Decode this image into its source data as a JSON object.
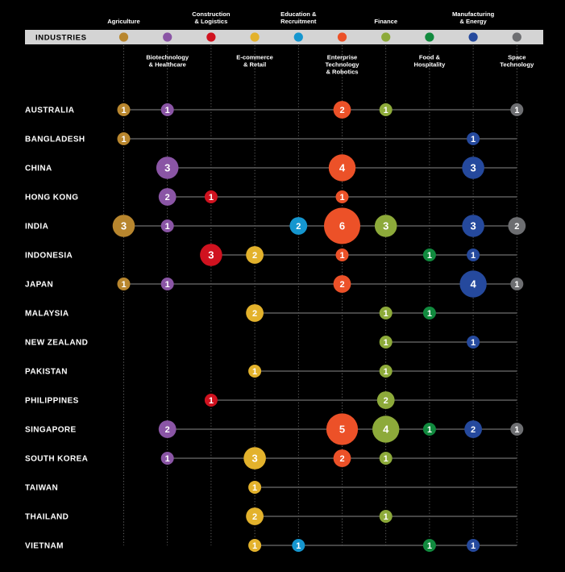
{
  "chart_data": {
    "type": "bubble-matrix",
    "band_title": "INDUSTRIES",
    "industries": [
      {
        "label": [
          "Agriculture"
        ],
        "color": "#b8862e"
      },
      {
        "label": [
          "Biotechnology",
          "& Healthcare"
        ],
        "color": "#8a55a5"
      },
      {
        "label": [
          "Construction",
          "& Logistics"
        ],
        "color": "#d0121f"
      },
      {
        "label": [
          "E-commerce",
          "& Retail"
        ],
        "color": "#e3b22c"
      },
      {
        "label": [
          "Education &",
          "Recruitment"
        ],
        "color": "#1596cf"
      },
      {
        "label": [
          "Enterprise",
          "Technology",
          "& Robotics"
        ],
        "color": "#ec5128"
      },
      {
        "label": [
          "Finance"
        ],
        "color": "#8daa3a"
      },
      {
        "label": [
          "Food &",
          "Hospitality"
        ],
        "color": "#118a3e"
      },
      {
        "label": [
          "Manufacturing",
          "& Energy"
        ],
        "color": "#25499d"
      },
      {
        "label": [
          "Space",
          "Technology"
        ],
        "color": "#6d6e71"
      }
    ],
    "countries": [
      "AUSTRALIA",
      "BANGLADESH",
      "CHINA",
      "HONG KONG",
      "INDIA",
      "INDONESIA",
      "JAPAN",
      "MALAYSIA",
      "NEW ZEALAND",
      "PAKISTAN",
      "PHILIPPINES",
      "SINGAPORE",
      "SOUTH KOREA",
      "TAIWAN",
      "THAILAND",
      "VIETNAM"
    ],
    "values": [
      [
        1,
        1,
        0,
        0,
        0,
        2,
        1,
        0,
        0,
        1
      ],
      [
        1,
        0,
        0,
        0,
        0,
        0,
        0,
        0,
        1,
        0
      ],
      [
        0,
        3,
        0,
        0,
        0,
        4,
        0,
        0,
        3,
        0
      ],
      [
        0,
        2,
        1,
        0,
        0,
        1,
        0,
        0,
        0,
        0
      ],
      [
        3,
        1,
        0,
        0,
        2,
        6,
        3,
        0,
        3,
        2
      ],
      [
        0,
        0,
        3,
        2,
        0,
        1,
        0,
        1,
        1,
        0
      ],
      [
        1,
        1,
        0,
        0,
        0,
        2,
        0,
        0,
        4,
        1
      ],
      [
        0,
        0,
        0,
        2,
        0,
        0,
        1,
        1,
        0,
        0
      ],
      [
        0,
        0,
        0,
        0,
        0,
        0,
        1,
        0,
        1,
        0
      ],
      [
        0,
        0,
        0,
        1,
        0,
        0,
        1,
        0,
        0,
        0
      ],
      [
        0,
        0,
        1,
        0,
        0,
        0,
        2,
        0,
        0,
        0
      ],
      [
        0,
        2,
        0,
        0,
        0,
        5,
        4,
        1,
        2,
        1
      ],
      [
        0,
        1,
        0,
        3,
        0,
        2,
        1,
        0,
        0,
        0
      ],
      [
        0,
        0,
        0,
        1,
        0,
        0,
        0,
        0,
        0,
        0
      ],
      [
        0,
        0,
        0,
        2,
        0,
        0,
        1,
        0,
        0,
        0
      ],
      [
        0,
        0,
        0,
        1,
        1,
        0,
        0,
        1,
        1,
        0
      ]
    ]
  }
}
